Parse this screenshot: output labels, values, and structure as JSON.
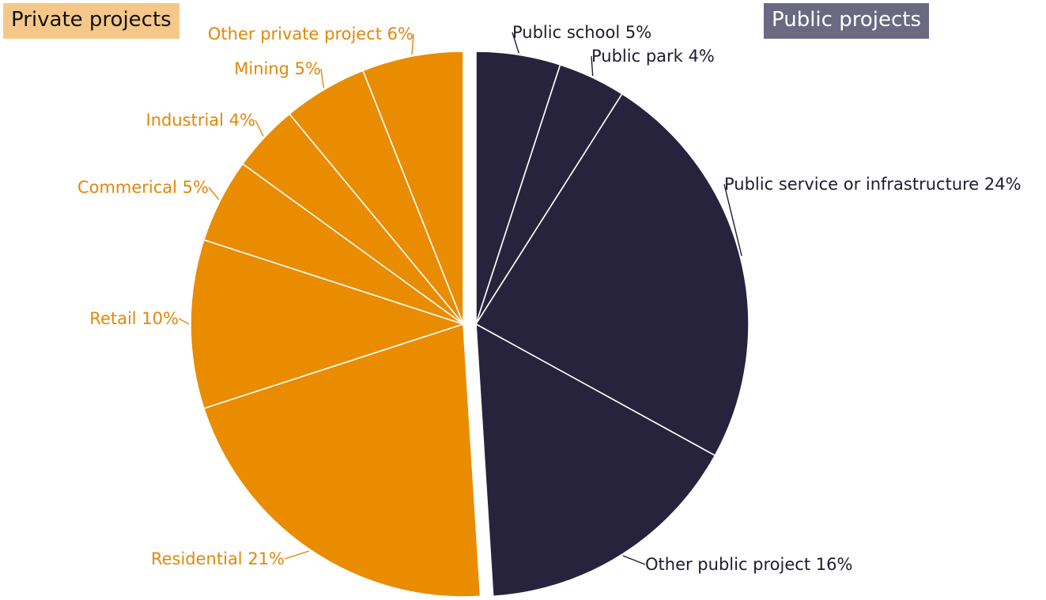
{
  "legend": {
    "private_label": "Private projects",
    "public_label": "Public projects"
  },
  "chart_data": {
    "type": "pie",
    "title": "",
    "groups": [
      {
        "name": "Public projects",
        "color": "#28233d"
      },
      {
        "name": "Private projects",
        "color": "#ea8c00"
      }
    ],
    "slices": [
      {
        "label": "Public school 5%",
        "value": 5,
        "group": "Public projects"
      },
      {
        "label": "Public park 4%",
        "value": 4,
        "group": "Public projects"
      },
      {
        "label": "Public service or infrastructure 24%",
        "value": 24,
        "group": "Public projects"
      },
      {
        "label": "Other public project 16%",
        "value": 16,
        "group": "Public projects"
      },
      {
        "label": "Residential 21%",
        "value": 21,
        "group": "Private projects"
      },
      {
        "label": "Retail 10%",
        "value": 10,
        "group": "Private projects"
      },
      {
        "label": "Commerical 5%",
        "value": 5,
        "group": "Private projects"
      },
      {
        "label": "Industrial 4%",
        "value": 4,
        "group": "Private projects"
      },
      {
        "label": "Mining 5%",
        "value": 5,
        "group": "Private projects"
      },
      {
        "label": "Other private project 6%",
        "value": 6,
        "group": "Private projects"
      }
    ]
  }
}
